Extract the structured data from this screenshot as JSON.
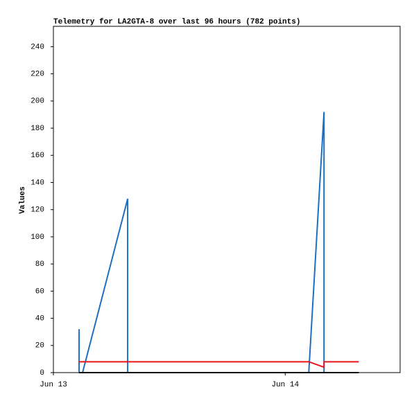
{
  "chart_data": {
    "type": "line",
    "title": "Telemetry for LA2GTA-8 over last 96 hours (782 points)",
    "y_label": "Values",
    "xlim": [
      0,
      35.9
    ],
    "xticks": [
      {
        "value": 0,
        "label": "Jun 13"
      },
      {
        "value": 24,
        "label": "Jun 14"
      }
    ],
    "ylim": [
      0,
      255
    ],
    "yticks": [
      0,
      20,
      40,
      60,
      80,
      100,
      120,
      140,
      160,
      180,
      200,
      220,
      240
    ],
    "series": [
      {
        "color": "#1f6fc0",
        "x": [
          2.66,
          2.66,
          3.02,
          7.69,
          7.69,
          26.44,
          28.02,
          28.02
        ],
        "values": [
          32,
          0,
          0,
          128,
          0,
          0,
          192,
          0
        ]
      },
      {
        "color": "#e8141c",
        "x": [
          2.66,
          26.44,
          28.02,
          28.02,
          31.62
        ],
        "values": [
          8,
          8,
          4,
          8,
          8
        ]
      },
      {
        "color": "#000000",
        "x": [
          2.66,
          31.62
        ],
        "values": [
          0,
          0
        ]
      }
    ]
  }
}
